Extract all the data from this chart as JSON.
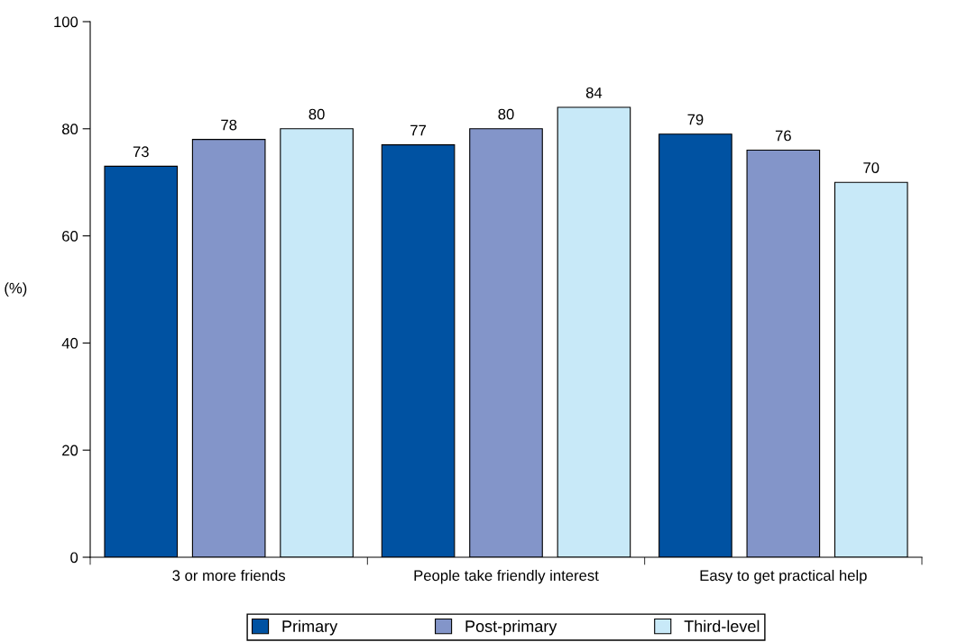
{
  "chart_data": {
    "type": "bar",
    "ylabel": "(%)",
    "categories": [
      "3 or more friends",
      "People take friendly interest",
      "Easy to get practical help"
    ],
    "series": [
      {
        "name": "Primary",
        "color": "#0052a2",
        "values": [
          73,
          77,
          79
        ]
      },
      {
        "name": "Post-primary",
        "color": "#8395c9",
        "values": [
          78,
          80,
          76
        ]
      },
      {
        "name": "Third-level",
        "color": "#c8e9f8",
        "values": [
          80,
          84,
          70
        ]
      }
    ],
    "ylim": [
      0,
      100
    ],
    "yticks": [
      0,
      20,
      40,
      60,
      80,
      100
    ],
    "data_labels": true,
    "grid": false,
    "legend": "bottom"
  }
}
